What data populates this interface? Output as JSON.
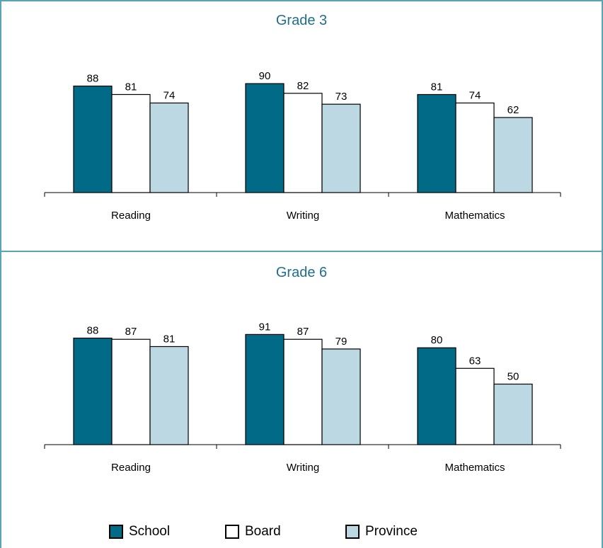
{
  "colors": {
    "school": "#006a87",
    "board": "#ffffff",
    "province": "#bcd9e3",
    "frame": "#5aa3b8",
    "title": "#1f6f8b"
  },
  "legend": {
    "school": "School",
    "board": "Board",
    "province": "Province"
  },
  "chart_data": [
    {
      "type": "bar",
      "title": "Grade 3",
      "categories": [
        "Reading",
        "Writing",
        "Mathematics"
      ],
      "series": [
        {
          "name": "School",
          "values": [
            88,
            90,
            81
          ]
        },
        {
          "name": "Board",
          "values": [
            81,
            82,
            74
          ]
        },
        {
          "name": "Province",
          "values": [
            74,
            73,
            62
          ]
        }
      ],
      "ylim": [
        0,
        100
      ],
      "grid": false,
      "legend_position": "bottom"
    },
    {
      "type": "bar",
      "title": "Grade 6",
      "categories": [
        "Reading",
        "Writing",
        "Mathematics"
      ],
      "series": [
        {
          "name": "School",
          "values": [
            88,
            91,
            80
          ]
        },
        {
          "name": "Board",
          "values": [
            87,
            87,
            63
          ]
        },
        {
          "name": "Province",
          "values": [
            81,
            79,
            50
          ]
        }
      ],
      "ylim": [
        0,
        100
      ],
      "grid": false,
      "legend_position": "bottom"
    }
  ]
}
